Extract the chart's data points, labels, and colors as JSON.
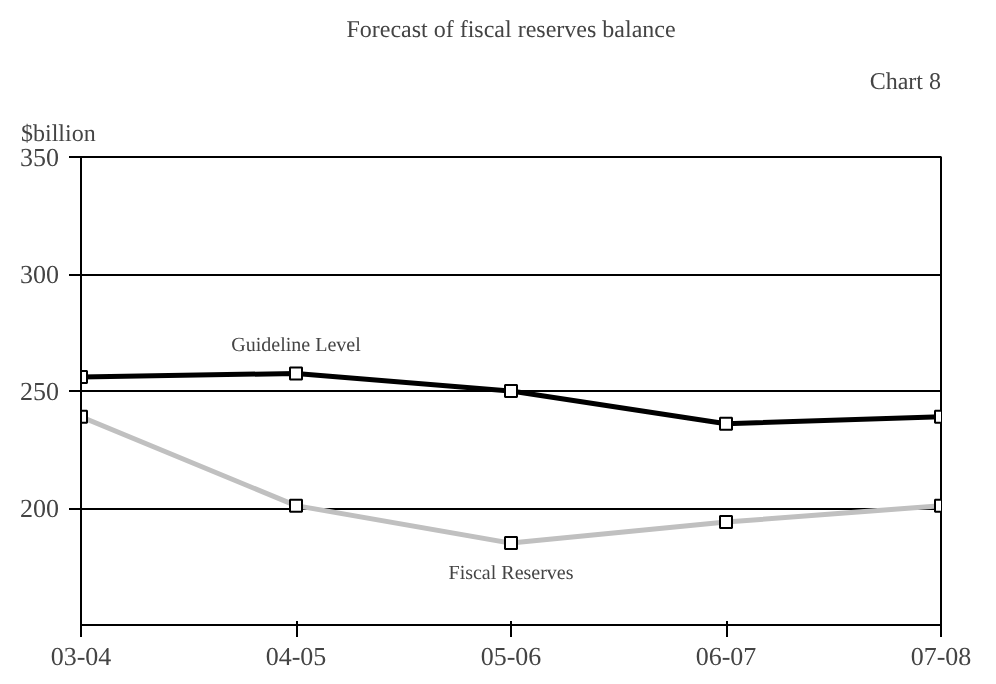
{
  "chart_data": {
    "type": "line",
    "title": "Forecast of fiscal reserves balance",
    "ylabel": "$billion",
    "annotations": [
      "Chart 8"
    ],
    "categories": [
      "03-04",
      "04-05",
      "05-06",
      "06-07",
      "07-08"
    ],
    "series": [
      {
        "name": "Guideline Level",
        "color": "#000000",
        "values": [
          256,
          257.5,
          250,
          236,
          239
        ]
      },
      {
        "name": "Fiscal Reserves",
        "color": "#c0c0c0",
        "values": [
          239,
          201,
          185,
          194,
          201
        ]
      }
    ],
    "ylim": [
      150,
      350
    ],
    "yticks": [
      200,
      250,
      300,
      350
    ],
    "grid": "y",
    "marker": "square"
  }
}
